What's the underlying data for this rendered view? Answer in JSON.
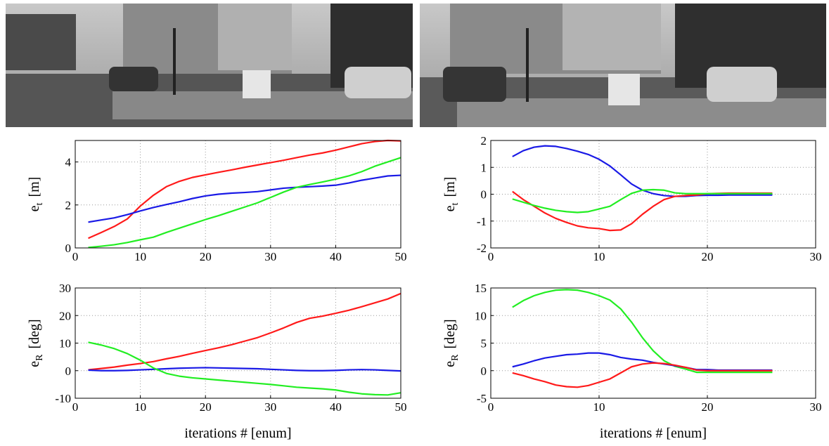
{
  "chart_data": [
    {
      "type": "line",
      "ylabel": "e",
      "ylabel_sub": "t",
      "ylabel_unit": "[m]",
      "x": [
        2,
        4,
        6,
        8,
        10,
        12,
        14,
        16,
        18,
        20,
        22,
        24,
        26,
        28,
        30,
        32,
        34,
        36,
        38,
        40,
        42,
        44,
        46,
        48,
        50
      ],
      "xlim": [
        0,
        50
      ],
      "xticks": [
        0,
        10,
        20,
        30,
        40,
        50
      ],
      "ylim": [
        0,
        5
      ],
      "yticks": [
        0,
        2,
        4
      ],
      "grid": true,
      "series": [
        {
          "color": "#ff1a1a",
          "values": [
            0.45,
            0.72,
            1.0,
            1.35,
            1.95,
            2.45,
            2.85,
            3.1,
            3.28,
            3.4,
            3.52,
            3.63,
            3.75,
            3.86,
            3.97,
            4.08,
            4.2,
            4.32,
            4.42,
            4.55,
            4.7,
            4.85,
            4.95,
            5.0,
            4.98
          ]
        },
        {
          "color": "#1a1ae6",
          "values": [
            1.2,
            1.3,
            1.4,
            1.55,
            1.72,
            1.88,
            2.02,
            2.15,
            2.3,
            2.42,
            2.5,
            2.55,
            2.58,
            2.62,
            2.7,
            2.78,
            2.82,
            2.85,
            2.88,
            2.92,
            3.02,
            3.15,
            3.25,
            3.35,
            3.38
          ]
        },
        {
          "color": "#22ee22",
          "values": [
            0.02,
            0.08,
            0.15,
            0.25,
            0.38,
            0.5,
            0.72,
            0.92,
            1.12,
            1.32,
            1.5,
            1.7,
            1.9,
            2.1,
            2.35,
            2.6,
            2.82,
            2.95,
            3.07,
            3.2,
            3.35,
            3.55,
            3.8,
            4.0,
            4.2
          ]
        }
      ]
    },
    {
      "type": "line",
      "ylabel": "e",
      "ylabel_sub": "t",
      "ylabel_unit": "[m]",
      "x": [
        2,
        3,
        4,
        5,
        6,
        7,
        8,
        9,
        10,
        11,
        12,
        13,
        14,
        15,
        16,
        17,
        18,
        19,
        20,
        21,
        22,
        23,
        24,
        25,
        26
      ],
      "xlim": [
        0,
        30
      ],
      "xticks": [
        0,
        10,
        20,
        30
      ],
      "ylim": [
        -2,
        2
      ],
      "yticks": [
        -2,
        -1,
        0,
        1,
        2
      ],
      "grid": true,
      "series": [
        {
          "color": "#1a1ae6",
          "values": [
            1.4,
            1.62,
            1.75,
            1.8,
            1.78,
            1.7,
            1.6,
            1.48,
            1.3,
            1.05,
            0.72,
            0.38,
            0.15,
            0.02,
            -0.05,
            -0.08,
            -0.08,
            -0.05,
            -0.04,
            -0.04,
            -0.03,
            -0.03,
            -0.03,
            -0.03,
            -0.03
          ]
        },
        {
          "color": "#ff1a1a",
          "values": [
            0.1,
            -0.2,
            -0.45,
            -0.7,
            -0.9,
            -1.05,
            -1.18,
            -1.25,
            -1.28,
            -1.35,
            -1.33,
            -1.1,
            -0.75,
            -0.45,
            -0.2,
            -0.08,
            -0.05,
            -0.03,
            0.02,
            0.03,
            0.04,
            0.04,
            0.04,
            0.04,
            0.04
          ]
        },
        {
          "color": "#22ee22",
          "values": [
            -0.18,
            -0.3,
            -0.42,
            -0.52,
            -0.6,
            -0.65,
            -0.68,
            -0.65,
            -0.55,
            -0.45,
            -0.2,
            0.03,
            0.15,
            0.17,
            0.15,
            0.05,
            0.02,
            0.02,
            0.02,
            0.02,
            0.02,
            0.02,
            0.02,
            0.02,
            0.02
          ]
        }
      ]
    },
    {
      "type": "line",
      "ylabel": "e",
      "ylabel_sub": "R",
      "ylabel_unit": "[deg]",
      "xlabel": "iterations # [enum]",
      "x": [
        2,
        4,
        6,
        8,
        10,
        12,
        14,
        16,
        18,
        20,
        22,
        24,
        26,
        28,
        30,
        32,
        34,
        36,
        38,
        40,
        42,
        44,
        46,
        48,
        50
      ],
      "xlim": [
        0,
        50
      ],
      "xticks": [
        0,
        10,
        20,
        30,
        40,
        50
      ],
      "ylim": [
        -10,
        30
      ],
      "yticks": [
        -10,
        0,
        10,
        20,
        30
      ],
      "grid": true,
      "series": [
        {
          "color": "#ff1a1a",
          "values": [
            0.3,
            0.8,
            1.3,
            2.0,
            2.6,
            3.3,
            4.3,
            5.2,
            6.3,
            7.3,
            8.3,
            9.4,
            10.7,
            12,
            13.7,
            15.5,
            17.5,
            19,
            19.8,
            20.8,
            21.9,
            23.2,
            24.6,
            26,
            28
          ]
        },
        {
          "color": "#1a1ae6",
          "values": [
            0.2,
            0,
            0,
            0.1,
            0.3,
            0.5,
            0.7,
            0.9,
            1.0,
            1.1,
            1.0,
            0.9,
            0.8,
            0.7,
            0.5,
            0.3,
            0.1,
            0,
            0,
            0.1,
            0.3,
            0.4,
            0.3,
            0.1,
            -0.1
          ]
        },
        {
          "color": "#22ee22",
          "values": [
            10.3,
            9.3,
            8.0,
            6.2,
            3.8,
            1.0,
            -1.0,
            -2.0,
            -2.6,
            -3.0,
            -3.4,
            -3.8,
            -4.2,
            -4.6,
            -5.0,
            -5.5,
            -6.0,
            -6.3,
            -6.6,
            -7.0,
            -7.8,
            -8.4,
            -8.7,
            -8.8,
            -8.0
          ]
        }
      ]
    },
    {
      "type": "line",
      "ylabel": "e",
      "ylabel_sub": "R",
      "ylabel_unit": "[deg]",
      "xlabel": "iterations # [enum]",
      "x": [
        2,
        3,
        4,
        5,
        6,
        7,
        8,
        9,
        10,
        11,
        12,
        13,
        14,
        15,
        16,
        17,
        18,
        19,
        20,
        21,
        22,
        23,
        24,
        25,
        26
      ],
      "xlim": [
        0,
        30
      ],
      "xticks": [
        0,
        10,
        20,
        30
      ],
      "ylim": [
        -5,
        15
      ],
      "yticks": [
        -5,
        0,
        5,
        10,
        15
      ],
      "grid": true,
      "series": [
        {
          "color": "#22ee22",
          "values": [
            11.5,
            12.7,
            13.6,
            14.2,
            14.6,
            14.7,
            14.6,
            14.2,
            13.6,
            12.8,
            11.2,
            8.8,
            6.0,
            3.6,
            1.8,
            0.8,
            0.3,
            -0.3,
            -0.3,
            -0.3,
            -0.3,
            -0.3,
            -0.3,
            -0.3,
            -0.3
          ]
        },
        {
          "color": "#1a1ae6",
          "values": [
            0.7,
            1.2,
            1.8,
            2.3,
            2.6,
            2.9,
            3.0,
            3.2,
            3.2,
            2.9,
            2.4,
            2.1,
            1.9,
            1.5,
            1.2,
            0.9,
            0.6,
            0.2,
            0.2,
            0.1,
            0.1,
            0.1,
            0.1,
            0.1,
            0.1
          ]
        },
        {
          "color": "#ff1a1a",
          "values": [
            -0.4,
            -0.9,
            -1.5,
            -2.0,
            -2.6,
            -2.9,
            -3.0,
            -2.7,
            -2.1,
            -1.5,
            -0.4,
            0.7,
            1.2,
            1.4,
            1.3,
            1.0,
            0.6,
            0.1,
            0,
            0,
            0,
            0,
            0,
            0,
            0
          ]
        }
      ]
    }
  ]
}
